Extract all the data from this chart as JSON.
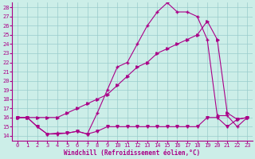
{
  "xlabel": "Windchill (Refroidissement éolien,°C)",
  "bg_color": "#cceee8",
  "line_color": "#aa0088",
  "grid_color": "#99cccc",
  "xlim": [
    -0.5,
    23.5
  ],
  "ylim": [
    13.5,
    28.5
  ],
  "yticks": [
    14,
    15,
    16,
    17,
    18,
    19,
    20,
    21,
    22,
    23,
    24,
    25,
    26,
    27,
    28
  ],
  "xticks": [
    0,
    1,
    2,
    3,
    4,
    5,
    6,
    7,
    8,
    9,
    10,
    11,
    12,
    13,
    14,
    15,
    16,
    17,
    18,
    19,
    20,
    21,
    22,
    23
  ],
  "line1_x": [
    0,
    1,
    2,
    3,
    4,
    5,
    6,
    7,
    8,
    9,
    10,
    11,
    12,
    13,
    14,
    15,
    16,
    17,
    18,
    19,
    20,
    21,
    22,
    23
  ],
  "line1_y": [
    16,
    16,
    15,
    14.2,
    14.2,
    14.3,
    14.5,
    14.2,
    14.5,
    15,
    15,
    15,
    15,
    15,
    15,
    15,
    15,
    15,
    15,
    16,
    16,
    15,
    15.8,
    16
  ],
  "line2_x": [
    0,
    1,
    2,
    3,
    4,
    5,
    6,
    7,
    8,
    9,
    10,
    11,
    12,
    13,
    14,
    15,
    16,
    17,
    18,
    19,
    20,
    21,
    22,
    23
  ],
  "line2_y": [
    16,
    16,
    15,
    14.2,
    14.3,
    14.3,
    14.5,
    14.2,
    16.5,
    19.0,
    21.5,
    22.0,
    24.0,
    26.0,
    27.5,
    28.5,
    27.5,
    27.5,
    27.0,
    24.5,
    16.2,
    16.2,
    15.0,
    16.0
  ],
  "line3_x": [
    0,
    1,
    2,
    3,
    4,
    5,
    6,
    7,
    8,
    9,
    10,
    11,
    12,
    13,
    14,
    15,
    16,
    17,
    18,
    19,
    20,
    21,
    22,
    23
  ],
  "line3_y": [
    16,
    16,
    16,
    16,
    16,
    16.5,
    17.0,
    17.5,
    18.0,
    18.5,
    19.5,
    20.5,
    21.5,
    22.0,
    23.0,
    23.5,
    24.0,
    24.5,
    25.0,
    26.5,
    24.5,
    16.5,
    15.8,
    16.0
  ]
}
